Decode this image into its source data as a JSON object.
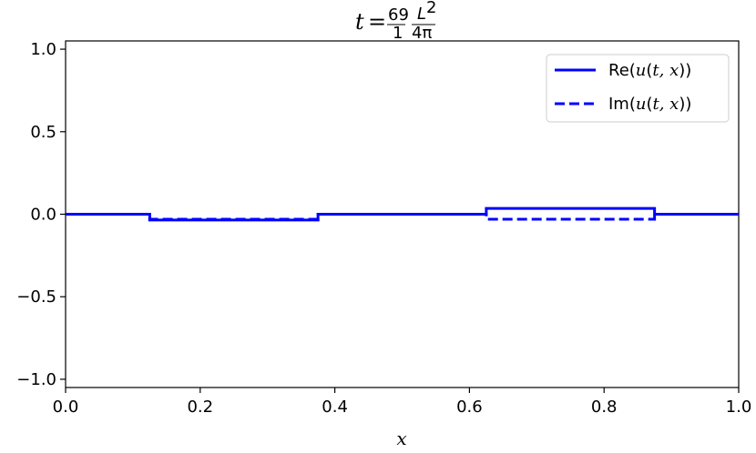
{
  "chart_data": {
    "type": "line",
    "title": "t = 69/1 · L²/4π",
    "title_parts": {
      "var": "t",
      "eq": "=",
      "frac1_num": "69",
      "frac1_den": "1",
      "frac2_num": "L",
      "frac2_sup": "2",
      "frac2_den": "4π"
    },
    "xlabel": "x",
    "ylabel": "",
    "xlim": [
      0.0,
      1.0
    ],
    "ylim": [
      -1.05,
      1.05
    ],
    "xticks": [
      0.0,
      0.2,
      0.4,
      0.6,
      0.8,
      1.0
    ],
    "xtick_labels": [
      "0.0",
      "0.2",
      "0.4",
      "0.6",
      "0.8",
      "1.0"
    ],
    "yticks": [
      -1.0,
      -0.5,
      0.0,
      0.5,
      1.0
    ],
    "ytick_labels": [
      "−1.0",
      "−0.5",
      "0.0",
      "0.5",
      "1.0"
    ],
    "grid": false,
    "legend_position": "top-right",
    "series": [
      {
        "name": "Re(u(t, x))",
        "label_parts": {
          "pre": "Re(",
          "var": "u",
          "mid": "(",
          "args": "t, x",
          "post": "))"
        },
        "color": "#0000ff",
        "style": "solid",
        "x": [
          0.0,
          0.125,
          0.125,
          0.375,
          0.375,
          0.625,
          0.625,
          0.875,
          0.875,
          1.0
        ],
        "y": [
          0.0,
          0.0,
          -0.035,
          -0.035,
          0.0,
          0.0,
          0.035,
          0.035,
          0.0,
          0.0
        ]
      },
      {
        "name": "Im(u(t, x))",
        "label_parts": {
          "pre": "Im(",
          "var": "u",
          "mid": "(",
          "args": "t, x",
          "post": "))"
        },
        "color": "#0000ff",
        "style": "dashed",
        "x": [
          0.0,
          0.125,
          0.125,
          0.375,
          0.375,
          0.625,
          0.625,
          0.875,
          0.875,
          1.0
        ],
        "y": [
          0.0,
          0.0,
          -0.03,
          -0.03,
          0.0,
          0.0,
          -0.03,
          -0.03,
          0.0,
          0.0
        ]
      }
    ]
  }
}
